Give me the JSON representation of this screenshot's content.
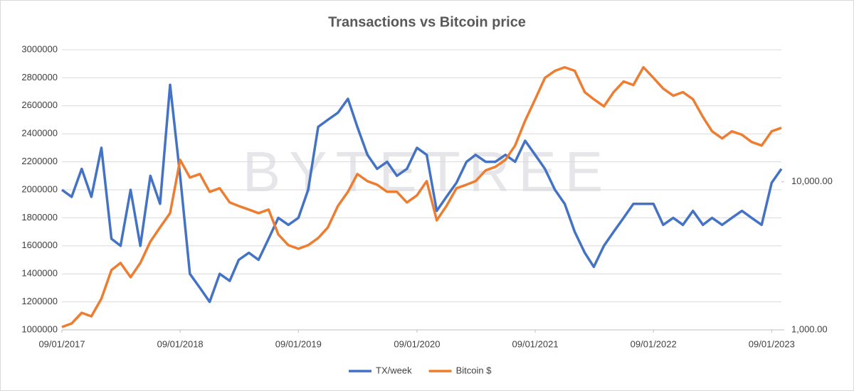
{
  "chart_data": {
    "type": "line",
    "title": "Transactions vs Bitcoin price",
    "watermark": "BYTETREE",
    "x": [
      "09/01/2017",
      "10/01/2017",
      "11/01/2017",
      "12/01/2017",
      "01/01/2018",
      "02/01/2018",
      "03/01/2018",
      "04/01/2018",
      "05/01/2018",
      "06/01/2018",
      "07/01/2018",
      "08/01/2018",
      "09/01/2018",
      "10/01/2018",
      "11/01/2018",
      "12/01/2018",
      "01/01/2019",
      "02/01/2019",
      "03/01/2019",
      "04/01/2019",
      "05/01/2019",
      "06/01/2019",
      "07/01/2019",
      "08/01/2019",
      "09/01/2019",
      "10/01/2019",
      "11/01/2019",
      "12/01/2019",
      "01/01/2020",
      "02/01/2020",
      "03/01/2020",
      "04/01/2020",
      "05/01/2020",
      "06/01/2020",
      "07/01/2020",
      "08/01/2020",
      "09/01/2020",
      "10/01/2020",
      "11/01/2020",
      "12/01/2020",
      "01/01/2021",
      "02/01/2021",
      "03/01/2021",
      "04/01/2021",
      "05/01/2021",
      "06/01/2021",
      "07/01/2021",
      "08/01/2021",
      "09/01/2021",
      "10/01/2021",
      "11/01/2021",
      "12/01/2021",
      "01/01/2022",
      "02/01/2022",
      "03/01/2022",
      "04/01/2022",
      "05/01/2022",
      "06/01/2022",
      "07/01/2022",
      "08/01/2022",
      "09/01/2022",
      "10/01/2022",
      "11/01/2022",
      "12/01/2022",
      "01/01/2023",
      "02/01/2023",
      "03/01/2023",
      "04/01/2023",
      "05/01/2023",
      "06/01/2023",
      "07/01/2023",
      "08/01/2023",
      "09/01/2023",
      "10/01/2023"
    ],
    "xlim": [
      "09/01/2017",
      "10/01/2023"
    ],
    "xticks": [
      "09/01/2017",
      "09/01/2018",
      "09/01/2019",
      "09/01/2020",
      "09/01/2021",
      "09/01/2022",
      "09/01/2023"
    ],
    "ylim": [
      1000000,
      3000000
    ],
    "yticks": [
      1000000,
      1200000,
      1400000,
      1600000,
      1800000,
      2000000,
      2200000,
      2400000,
      2600000,
      2800000,
      3000000
    ],
    "y2lim": [
      1000,
      78000
    ],
    "y2log": true,
    "y2ticks": [
      {
        "value": 1000,
        "label": "1,000.00"
      },
      {
        "value": 10000,
        "label": "10,000.00"
      }
    ],
    "grid": true,
    "legend": "bottom",
    "series": [
      {
        "name": "TX/week",
        "color": "#4472c4",
        "values": [
          2000000,
          1950000,
          2150000,
          1950000,
          2300000,
          1650000,
          1600000,
          2000000,
          1600000,
          2100000,
          1900000,
          2750000,
          2100000,
          1400000,
          1300000,
          1200000,
          1400000,
          1350000,
          1500000,
          1550000,
          1500000,
          1650000,
          1800000,
          1750000,
          1800000,
          2000000,
          2450000,
          2500000,
          2550000,
          2650000,
          2450000,
          2250000,
          2150000,
          2200000,
          2100000,
          2150000,
          2300000,
          2250000,
          1850000,
          1950000,
          2050000,
          2200000,
          2250000,
          2200000,
          2200000,
          2250000,
          2200000,
          2350000,
          2250000,
          2150000,
          2000000,
          1900000,
          1700000,
          1550000,
          1450000,
          1600000,
          1700000,
          1800000,
          1900000,
          1900000,
          1900000,
          1750000,
          1800000,
          1750000,
          1850000,
          1750000,
          1800000,
          1750000,
          1800000,
          1850000,
          1800000,
          1750000,
          2050000,
          2150000
        ]
      },
      {
        "name": "Bitcoin $",
        "color": "#ed7d31",
        "axis": "y2",
        "values": [
          1045,
          1105,
          1304,
          1234,
          1627,
          2533,
          2830,
          2268,
          2830,
          3948,
          4923,
          6144,
          14090,
          10690,
          11290,
          8563,
          9052,
          7254,
          6863,
          6493,
          6144,
          6493,
          4409,
          3734,
          3532,
          3734,
          4171,
          4923,
          6863,
          8563,
          11290,
          10110,
          9568,
          8563,
          8563,
          7254,
          8103,
          10110,
          5500,
          6863,
          9052,
          9568,
          10110,
          11940,
          12620,
          14090,
          17580,
          25900,
          36130,
          50350,
          56230,
          59430,
          56230,
          40360,
          36130,
          32350,
          40360,
          47640,
          45080,
          59430,
          50350,
          42640,
          38190,
          40360,
          36130,
          27380,
          21930,
          19640,
          21930,
          20800,
          18590,
          17580,
          21930,
          23170
        ]
      }
    ]
  }
}
